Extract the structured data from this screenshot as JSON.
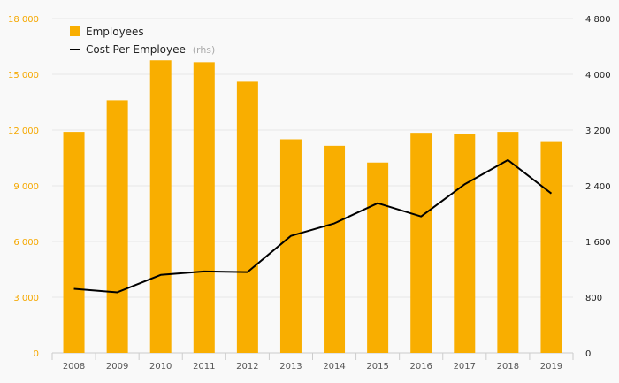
{
  "chart_data": {
    "type": "bar",
    "categories": [
      "2008",
      "2009",
      "2010",
      "2011",
      "2012",
      "2013",
      "2014",
      "2015",
      "2016",
      "2017",
      "2018",
      "2019"
    ],
    "series": [
      {
        "name": "Employees",
        "type": "bar",
        "axis": "left",
        "color": "#f9ae00",
        "values": [
          11900,
          13600,
          15750,
          15650,
          14600,
          11500,
          11150,
          10250,
          11850,
          11800,
          11900,
          11400
        ]
      },
      {
        "name": "Cost Per Employee",
        "name_suffix": "(rhs)",
        "type": "line",
        "axis": "right",
        "color": "#000000",
        "values": [
          920,
          870,
          1120,
          1170,
          1160,
          1680,
          1860,
          2150,
          1960,
          2420,
          2770,
          2290
        ]
      }
    ],
    "left_axis": {
      "ylim": [
        0,
        18000
      ],
      "ticks": [
        0,
        3000,
        6000,
        9000,
        12000,
        15000,
        18000
      ],
      "tick_labels": [
        "0",
        "3 000",
        "6 000",
        "9 000",
        "12 000",
        "15 000",
        "18 000"
      ],
      "color": "#f5a800"
    },
    "right_axis": {
      "ylim": [
        0,
        4800
      ],
      "ticks": [
        0,
        800,
        1600,
        2400,
        3200,
        4000,
        4800
      ],
      "tick_labels": [
        "0",
        "800",
        "1 600",
        "2 400",
        "3 200",
        "4 000",
        "4 800"
      ],
      "color": "#222222"
    },
    "grid": true,
    "legend_position": "top-left"
  }
}
